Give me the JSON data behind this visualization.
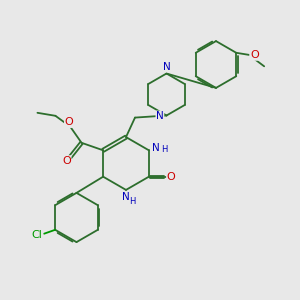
{
  "bg_color": "#e8e8e8",
  "bond_color": "#2d6e2d",
  "nitrogen_color": "#0000bb",
  "oxygen_color": "#cc0000",
  "chlorine_color": "#009900",
  "font_size": 7.5,
  "line_width": 1.3,
  "xlim": [
    0,
    10
  ],
  "ylim": [
    0,
    10
  ]
}
